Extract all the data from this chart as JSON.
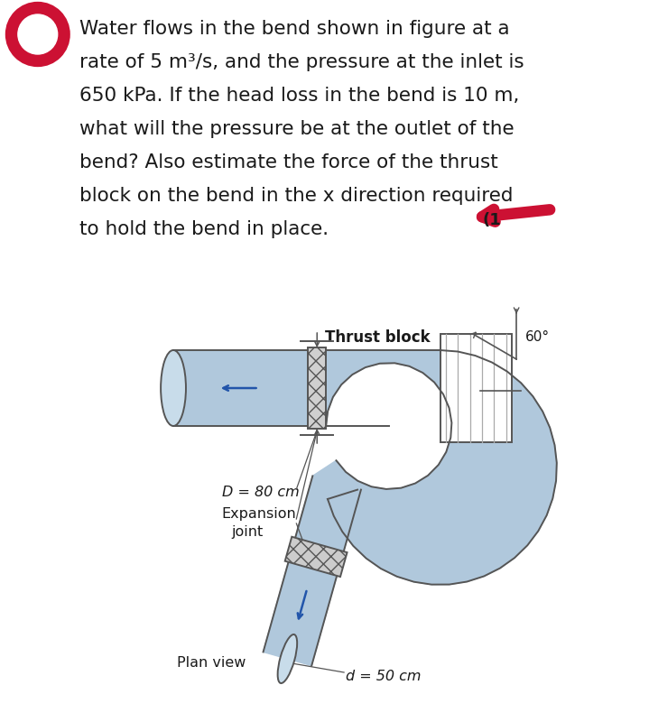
{
  "bg_color": "#ffffff",
  "text_color": "#1a1a1a",
  "pipe_fill_color": "#b0c8dc",
  "pipe_fill_light": "#c8dcea",
  "pipe_edge_color": "#555555",
  "hatch_color": "#888888",
  "arrow_color": "#2255aa",
  "red_color": "#cc1133",
  "problem_text_lines": [
    "Water flows in the bend shown in figure at a",
    "rate of 5 m³/s, and the pressure at the inlet is",
    "650 kPa. If the head loss in the bend is 10 m,",
    "what will the pressure be at the outlet of the",
    "bend? Also estimate the force of the thrust",
    "block on the bend in the x direction required",
    "to hold the bend in place."
  ],
  "label_thrust": "Thrust block",
  "label_angle": "60°",
  "label_D": "D = 80 cm",
  "label_exp": "Expansion",
  "label_joint": "joint",
  "label_plan": "Plan view",
  "label_d": "d = 50 cm",
  "font_size_text": 15.5,
  "font_size_label": 11.5,
  "font_size_angle": 11
}
